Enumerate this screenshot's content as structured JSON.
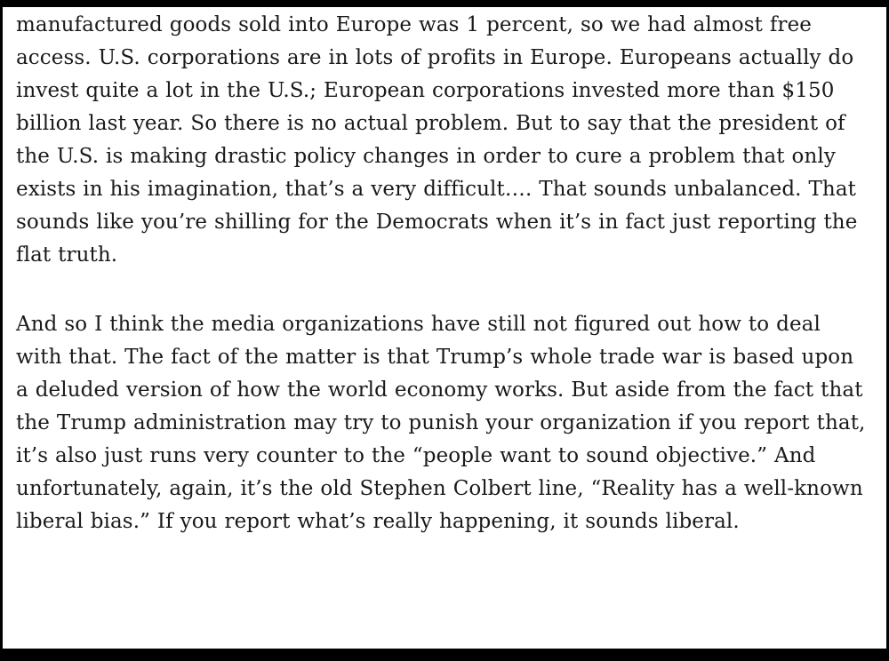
{
  "document": {
    "paragraphs": [
      "manufactured goods sold into Europe was 1 percent, so we had almost free access. U.S. corporations are in lots of profits in Europe. Europeans actually do invest quite a lot in the U.S.; European corporations invested more than $150 billion last year. So there is no actual problem. But to say that the president of the U.S. is making drastic policy changes in order to cure a problem that only exists in his imagination, that’s a very difficult…. That sounds unbalanced. That sounds like you’re shilling for the Democrats when it’s in fact just reporting the flat truth.",
      "And so I think the media organizations have still not figured out how to deal with that. The fact of the matter is that Trump’s whole trade war is based upon a deluded version of how the world economy works. But aside from the fact that the Trump administration may try to punish your organization if you report that, it’s also just runs very counter to the “people want to sound objective.” And unfortunately, again, it’s the old Stephen Colbert line, “Reality has a well-known liberal bias.” If you report what’s really happening, it sounds liberal."
    ]
  }
}
